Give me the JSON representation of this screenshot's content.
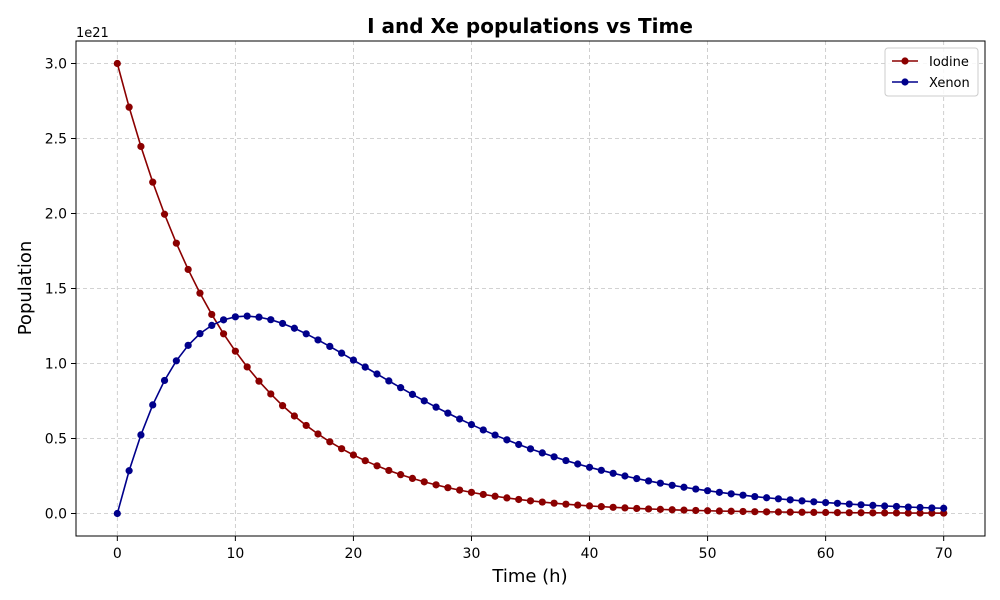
{
  "chart_data": {
    "type": "line",
    "title": "I and Xe populations vs Time",
    "xlabel": "Time (h)",
    "ylabel": "Population",
    "y_offset_label": "1e21",
    "xlim": [
      -3.5,
      73.5
    ],
    "ylim": [
      -0.15,
      3.15
    ],
    "xticks": [
      0,
      10,
      20,
      30,
      40,
      50,
      60,
      70
    ],
    "yticks": [
      "0.0",
      "0.5",
      "1.0",
      "1.5",
      "2.0",
      "2.5",
      "3.0"
    ],
    "grid": true,
    "legend_position": "top-right",
    "x": [
      0,
      1,
      2,
      3,
      4,
      5,
      6,
      7,
      8,
      9,
      10,
      11,
      12,
      13,
      14,
      15,
      16,
      17,
      18,
      19,
      20,
      21,
      22,
      23,
      24,
      25,
      26,
      27,
      28,
      29,
      30,
      31,
      32,
      33,
      34,
      35,
      36,
      37,
      38,
      39,
      40,
      41,
      42,
      43,
      44,
      45,
      46,
      47,
      48,
      49,
      50,
      51,
      52,
      53,
      54,
      55,
      56,
      57,
      58,
      59,
      60,
      61,
      62,
      63,
      64,
      65,
      66,
      67,
      68,
      69,
      70
    ],
    "series": [
      {
        "name": "Iodine",
        "color": "#8b0000",
        "values": [
          3.0,
          2.709,
          2.447,
          2.209,
          1.995,
          1.802,
          1.627,
          1.469,
          1.327,
          1.198,
          1.082,
          0.977,
          0.882,
          0.797,
          0.719,
          0.65,
          0.587,
          0.53,
          0.478,
          0.432,
          0.39,
          0.352,
          0.318,
          0.287,
          0.259,
          0.234,
          0.211,
          0.191,
          0.172,
          0.156,
          0.141,
          0.127,
          0.115,
          0.104,
          0.0935,
          0.0844,
          0.0762,
          0.0688,
          0.0622,
          0.0561,
          0.0507,
          0.0458,
          0.0413,
          0.0373,
          0.0337,
          0.0304,
          0.0275,
          0.0248,
          0.0224,
          0.0202,
          0.0183,
          0.0165,
          0.0149,
          0.0135,
          0.0122,
          0.011,
          0.0099,
          0.009,
          0.0081,
          0.0073,
          0.0066,
          0.006,
          0.0054,
          0.0049,
          0.0044,
          0.004,
          0.0036,
          0.0032,
          0.0029,
          0.0026,
          0.0024
        ]
      },
      {
        "name": "Xenon",
        "color": "#00008b",
        "values": [
          0.0,
          0.285,
          0.524,
          0.724,
          0.887,
          1.018,
          1.121,
          1.199,
          1.254,
          1.291,
          1.311,
          1.316,
          1.309,
          1.292,
          1.267,
          1.235,
          1.198,
          1.157,
          1.114,
          1.069,
          1.023,
          0.976,
          0.93,
          0.884,
          0.839,
          0.794,
          0.751,
          0.709,
          0.669,
          0.63,
          0.593,
          0.557,
          0.523,
          0.491,
          0.46,
          0.431,
          0.404,
          0.378,
          0.353,
          0.33,
          0.308,
          0.288,
          0.268,
          0.25,
          0.233,
          0.217,
          0.202,
          0.188,
          0.175,
          0.163,
          0.152,
          0.141,
          0.131,
          0.122,
          0.113,
          0.105,
          0.098,
          0.091,
          0.084,
          0.078,
          0.073,
          0.068,
          0.063,
          0.058,
          0.054,
          0.05,
          0.047,
          0.043,
          0.04,
          0.037,
          0.035
        ]
      }
    ]
  }
}
